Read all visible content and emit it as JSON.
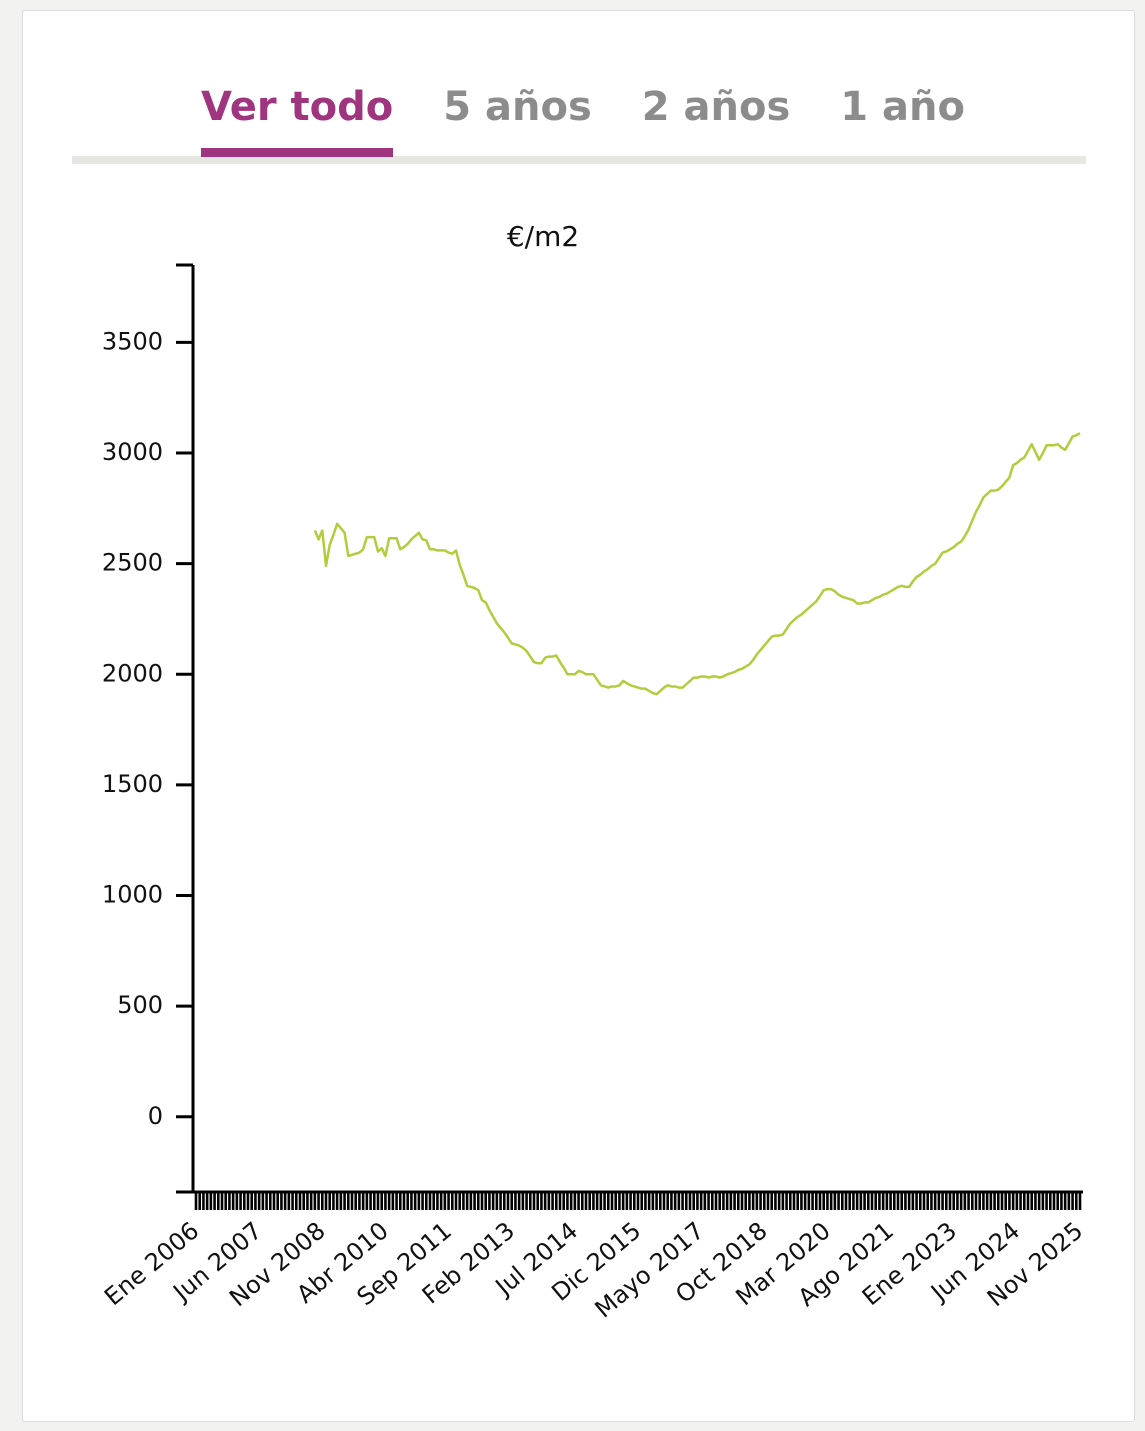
{
  "tabs": [
    "Ver todo",
    "5 años",
    "2 años",
    "1 año"
  ],
  "chart_data": {
    "type": "line",
    "y_label": "€/m2",
    "color": "#b3cc3c",
    "ylim": [
      -340,
      3850
    ],
    "yticks": [
      0,
      500,
      1000,
      1500,
      2000,
      2500,
      3000,
      3500
    ],
    "categories": [
      "Ene 2006",
      null,
      null,
      null,
      null,
      null,
      null,
      null,
      null,
      null,
      null,
      null,
      null,
      null,
      null,
      null,
      null,
      "Jun 2007",
      null,
      null,
      null,
      null,
      null,
      null,
      null,
      null,
      null,
      null,
      null,
      null,
      null,
      null,
      null,
      null,
      "Nov 2008",
      null,
      null,
      null,
      null,
      null,
      null,
      null,
      null,
      null,
      null,
      null,
      null,
      null,
      null,
      null,
      null,
      "Abr 2010",
      null,
      null,
      null,
      null,
      null,
      null,
      null,
      null,
      null,
      null,
      null,
      null,
      null,
      null,
      null,
      null,
      "Sep 2011",
      null,
      null,
      null,
      null,
      null,
      null,
      null,
      null,
      null,
      null,
      null,
      null,
      null,
      null,
      null,
      null,
      "Feb 2013",
      null,
      null,
      null,
      null,
      null,
      null,
      null,
      null,
      null,
      null,
      null,
      null,
      null,
      null,
      null,
      null,
      "Jul 2014",
      null,
      null,
      null,
      null,
      null,
      null,
      null,
      null,
      null,
      null,
      null,
      null,
      null,
      null,
      null,
      null,
      "Dic 2015",
      null,
      null,
      null,
      null,
      null,
      null,
      null,
      null,
      null,
      null,
      null,
      null,
      null,
      null,
      null,
      null,
      "Mayo 2017",
      null,
      null,
      null,
      null,
      null,
      null,
      null,
      null,
      null,
      null,
      null,
      null,
      null,
      null,
      null,
      null,
      "Oct 2018",
      null,
      null,
      null,
      null,
      null,
      null,
      null,
      null,
      null,
      null,
      null,
      null,
      null,
      null,
      null,
      null,
      "Mar 2020",
      null,
      null,
      null,
      null,
      null,
      null,
      null,
      null,
      null,
      null,
      null,
      null,
      null,
      null,
      null,
      null,
      "Ago 2021",
      null,
      null,
      null,
      null,
      null,
      null,
      null,
      null,
      null,
      null,
      null,
      null,
      null,
      null,
      null,
      null,
      "Ene 2023",
      null,
      null,
      null,
      null,
      null,
      null,
      null,
      null,
      null,
      null,
      null,
      null,
      null,
      null,
      null,
      null,
      "Jun 2024",
      null,
      null,
      null,
      null,
      null,
      null,
      null,
      null,
      null,
      null,
      null,
      null,
      null,
      null,
      null,
      null,
      "Nov 2025"
    ],
    "values": [
      null,
      null,
      null,
      null,
      null,
      null,
      null,
      null,
      null,
      null,
      null,
      null,
      null,
      null,
      null,
      null,
      null,
      null,
      null,
      null,
      null,
      null,
      null,
      null,
      null,
      null,
      null,
      null,
      null,
      null,
      null,
      null,
      2650,
      2610,
      2650,
      2490,
      2585,
      2630,
      2680,
      2660,
      2640,
      2535,
      2540,
      2545,
      2550,
      2565,
      2620,
      2620,
      2620,
      2555,
      2570,
      2535,
      2615,
      2615,
      2615,
      2565,
      2575,
      2590,
      2610,
      2625,
      2640,
      2610,
      2605,
      2565,
      2565,
      2560,
      2560,
      2560,
      2550,
      2545,
      2560,
      2495,
      2450,
      2400,
      2395,
      2390,
      2380,
      2335,
      2325,
      2290,
      2260,
      2230,
      2210,
      2190,
      2165,
      2140,
      2135,
      2130,
      2120,
      2105,
      2080,
      2055,
      2050,
      2050,
      2075,
      2080,
      2080,
      2085,
      2055,
      2030,
      2000,
      2000,
      2000,
      2015,
      2010,
      2000,
      2000,
      2000,
      1975,
      1950,
      1945,
      1940,
      1945,
      1945,
      1950,
      1970,
      1960,
      1950,
      1945,
      1940,
      1935,
      1935,
      1925,
      1915,
      1910,
      1925,
      1940,
      1950,
      1945,
      1945,
      1940,
      1940,
      1955,
      1970,
      1985,
      1985,
      1990,
      1990,
      1985,
      1990,
      1990,
      1985,
      1990,
      2000,
      2005,
      2010,
      2020,
      2025,
      2035,
      2045,
      2065,
      2090,
      2110,
      2130,
      2150,
      2170,
      2175,
      2175,
      2180,
      2205,
      2230,
      2245,
      2260,
      2270,
      2285,
      2300,
      2315,
      2330,
      2355,
      2380,
      2385,
      2385,
      2375,
      2360,
      2350,
      2345,
      2340,
      2335,
      2320,
      2320,
      2325,
      2325,
      2335,
      2345,
      2350,
      2360,
      2365,
      2375,
      2385,
      2395,
      2400,
      2395,
      2395,
      2420,
      2440,
      2450,
      2465,
      2475,
      2490,
      2500,
      2525,
      2550,
      2555,
      2565,
      2575,
      2590,
      2600,
      2625,
      2655,
      2695,
      2735,
      2765,
      2800,
      2815,
      2830,
      2830,
      2835,
      2850,
      2870,
      2890,
      2945,
      2955,
      2970,
      2980,
      3010,
      3040,
      3005,
      2970,
      3000,
      3035,
      3035,
      3035,
      3040,
      3025,
      3015,
      3045,
      3075,
      3080,
      3090
    ]
  }
}
